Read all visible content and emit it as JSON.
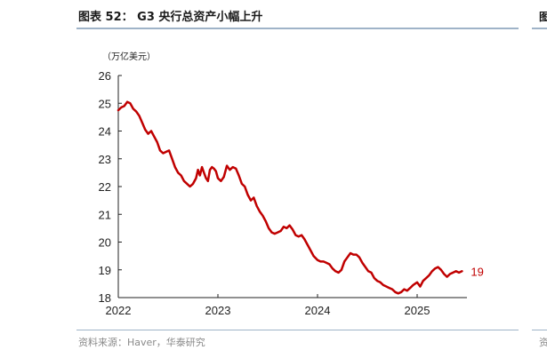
{
  "header": {
    "title": "图表 52：  G3 央行总资产小幅上升",
    "side_mark_top": "图",
    "source": "资料来源：Haver，华泰研究",
    "side_mark_bottom": "资"
  },
  "colors": {
    "line": "#c00000",
    "rule": "#9fb3c8",
    "axis": "#222222"
  },
  "chart_data": {
    "type": "line",
    "title": "",
    "ylabel": "（万亿美元）",
    "xlabel": "",
    "ylim": [
      18,
      26
    ],
    "yticks": [
      18,
      19,
      20,
      21,
      22,
      23,
      24,
      25,
      26
    ],
    "xlim": [
      2022.0,
      2025.5
    ],
    "xticks": [
      2022,
      2023,
      2024,
      2025
    ],
    "grid": false,
    "series": [
      {
        "name": "",
        "end_label": "19",
        "x": [
          2022.0,
          2022.03,
          2022.06,
          2022.09,
          2022.12,
          2022.15,
          2022.18,
          2022.21,
          2022.24,
          2022.27,
          2022.3,
          2022.33,
          2022.36,
          2022.39,
          2022.42,
          2022.45,
          2022.48,
          2022.51,
          2022.54,
          2022.57,
          2022.6,
          2022.63,
          2022.66,
          2022.69,
          2022.72,
          2022.75,
          2022.78,
          2022.8,
          2022.82,
          2022.84,
          2022.86,
          2022.88,
          2022.9,
          2022.92,
          2022.94,
          2022.96,
          2022.98,
          2023.0,
          2023.03,
          2023.06,
          2023.09,
          2023.12,
          2023.15,
          2023.18,
          2023.21,
          2023.24,
          2023.27,
          2023.3,
          2023.33,
          2023.36,
          2023.39,
          2023.42,
          2023.45,
          2023.48,
          2023.51,
          2023.54,
          2023.57,
          2023.6,
          2023.63,
          2023.66,
          2023.69,
          2023.72,
          2023.75,
          2023.78,
          2023.81,
          2023.84,
          2023.87,
          2023.9,
          2023.93,
          2023.96,
          2024.0,
          2024.03,
          2024.06,
          2024.09,
          2024.12,
          2024.15,
          2024.18,
          2024.21,
          2024.24,
          2024.27,
          2024.3,
          2024.33,
          2024.36,
          2024.39,
          2024.42,
          2024.45,
          2024.48,
          2024.51,
          2024.54,
          2024.57,
          2024.6,
          2024.63,
          2024.66,
          2024.69,
          2024.72,
          2024.75,
          2024.78,
          2024.81,
          2024.84,
          2024.87,
          2024.9,
          2024.93,
          2024.96,
          2025.0,
          2025.03,
          2025.06,
          2025.09,
          2025.12,
          2025.15,
          2025.18,
          2025.21,
          2025.24,
          2025.27,
          2025.3,
          2025.33,
          2025.36,
          2025.39,
          2025.42,
          2025.45
        ],
        "values": [
          24.75,
          24.85,
          24.9,
          25.05,
          25.0,
          24.8,
          24.7,
          24.55,
          24.3,
          24.05,
          23.9,
          24.0,
          23.8,
          23.6,
          23.3,
          23.2,
          23.25,
          23.3,
          23.0,
          22.7,
          22.5,
          22.4,
          22.2,
          22.1,
          22.0,
          22.1,
          22.3,
          22.6,
          22.4,
          22.7,
          22.5,
          22.3,
          22.2,
          22.6,
          22.7,
          22.65,
          22.55,
          22.3,
          22.2,
          22.35,
          22.75,
          22.6,
          22.7,
          22.65,
          22.4,
          22.1,
          22.0,
          21.7,
          21.5,
          21.6,
          21.3,
          21.1,
          20.95,
          20.75,
          20.5,
          20.35,
          20.3,
          20.35,
          20.4,
          20.55,
          20.5,
          20.6,
          20.45,
          20.25,
          20.2,
          20.25,
          20.1,
          19.9,
          19.7,
          19.5,
          19.35,
          19.3,
          19.3,
          19.25,
          19.2,
          19.05,
          18.95,
          18.9,
          19.0,
          19.3,
          19.45,
          19.6,
          19.55,
          19.55,
          19.45,
          19.25,
          19.1,
          18.95,
          18.9,
          18.7,
          18.6,
          18.55,
          18.45,
          18.4,
          18.35,
          18.3,
          18.2,
          18.15,
          18.2,
          18.3,
          18.25,
          18.35,
          18.45,
          18.55,
          18.4,
          18.6,
          18.7,
          18.8,
          18.95,
          19.05,
          19.1,
          19.0,
          18.85,
          18.75,
          18.85,
          18.9,
          18.95,
          18.9,
          18.95
        ]
      }
    ]
  }
}
